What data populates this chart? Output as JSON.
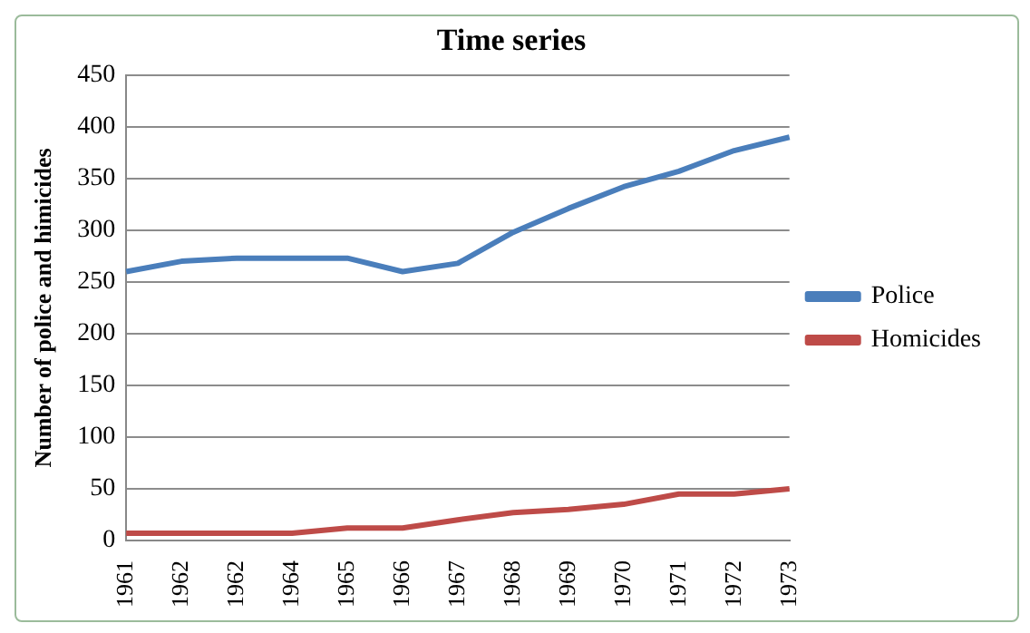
{
  "chart_data": {
    "type": "line",
    "title": "Time series",
    "ylabel": "Number of police and himicides",
    "categories": [
      "1961",
      "1962",
      "1962",
      "1964",
      "1965",
      "1966",
      "1967",
      "1968",
      "1969",
      "1970",
      "1971",
      "1972",
      "1973"
    ],
    "series": [
      {
        "name": "Police",
        "color": "#4a7ebb",
        "values": [
          260,
          270,
          273,
          273,
          273,
          260,
          268,
          298,
          321,
          342,
          357,
          377,
          390
        ]
      },
      {
        "name": "Homicides",
        "color": "#be4b48",
        "values": [
          7,
          7,
          7,
          7,
          12,
          12,
          20,
          27,
          30,
          35,
          45,
          45,
          50
        ]
      }
    ],
    "ylim": [
      0,
      450
    ],
    "yticks": [
      0,
      50,
      100,
      150,
      200,
      250,
      300,
      350,
      400,
      450
    ],
    "grid": "y",
    "legend": "right",
    "marker": "none",
    "line_style": "solid"
  }
}
